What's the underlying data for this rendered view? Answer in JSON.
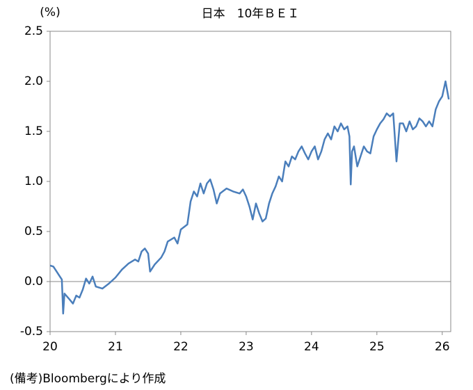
{
  "chart_data": {
    "type": "line",
    "title": "日本　10年ＢＥＩ",
    "y_label": "(%)",
    "note": "(備考)Bloombergにより作成",
    "xlim": [
      20,
      26.13
    ],
    "xticks": [
      20,
      21,
      22,
      23,
      24,
      25,
      26
    ],
    "ylim": [
      -0.5,
      2.5
    ],
    "yticks": [
      {
        "value": -0.5,
        "label": "-0.5"
      },
      {
        "value": 0,
        "label": "0.0"
      },
      {
        "value": 0.5,
        "label": "0.5"
      },
      {
        "value": 1,
        "label": "1.0"
      },
      {
        "value": 1.5,
        "label": "1.5"
      },
      {
        "value": 2,
        "label": "2.0"
      },
      {
        "value": 2.5,
        "label": "2.5"
      }
    ],
    "reference_line": 0,
    "grid": false,
    "x": [
      20.0,
      20.05,
      20.1,
      20.15,
      20.18,
      20.2,
      20.22,
      20.3,
      20.35,
      20.4,
      20.45,
      20.5,
      20.55,
      20.6,
      20.65,
      20.7,
      20.8,
      20.9,
      21.0,
      21.1,
      21.2,
      21.3,
      21.35,
      21.4,
      21.45,
      21.5,
      21.53,
      21.6,
      21.7,
      21.75,
      21.8,
      21.9,
      21.95,
      22.0,
      22.1,
      22.15,
      22.2,
      22.25,
      22.3,
      22.35,
      22.4,
      22.45,
      22.5,
      22.55,
      22.6,
      22.7,
      22.8,
      22.9,
      22.95,
      23.0,
      23.05,
      23.1,
      23.15,
      23.2,
      23.25,
      23.3,
      23.35,
      23.4,
      23.45,
      23.5,
      23.55,
      23.6,
      23.65,
      23.7,
      23.75,
      23.8,
      23.85,
      23.9,
      23.95,
      24.0,
      24.05,
      24.1,
      24.15,
      24.2,
      24.25,
      24.3,
      24.35,
      24.4,
      24.45,
      24.5,
      24.55,
      24.58,
      24.6,
      24.62,
      24.65,
      24.7,
      24.75,
      24.8,
      24.85,
      24.9,
      24.95,
      25.0,
      25.05,
      25.1,
      25.15,
      25.2,
      25.25,
      25.3,
      25.35,
      25.4,
      25.45,
      25.5,
      25.55,
      25.6,
      25.65,
      25.7,
      25.75,
      25.8,
      25.85,
      25.9,
      25.95,
      26.0,
      26.05,
      26.1
    ],
    "series": [
      {
        "name": "10年BEI",
        "color": "#4a7ebb",
        "values": [
          0.16,
          0.15,
          0.1,
          0.05,
          0.02,
          -0.32,
          -0.12,
          -0.18,
          -0.22,
          -0.14,
          -0.16,
          -0.08,
          0.03,
          -0.02,
          0.05,
          -0.05,
          -0.07,
          -0.02,
          0.04,
          0.12,
          0.18,
          0.22,
          0.2,
          0.3,
          0.33,
          0.28,
          0.1,
          0.17,
          0.24,
          0.3,
          0.4,
          0.44,
          0.38,
          0.52,
          0.57,
          0.8,
          0.9,
          0.85,
          0.98,
          0.88,
          0.98,
          1.02,
          0.92,
          0.78,
          0.88,
          0.93,
          0.9,
          0.88,
          0.92,
          0.85,
          0.75,
          0.62,
          0.78,
          0.68,
          0.6,
          0.63,
          0.78,
          0.88,
          0.95,
          1.05,
          1.0,
          1.2,
          1.15,
          1.25,
          1.22,
          1.3,
          1.35,
          1.28,
          1.22,
          1.3,
          1.35,
          1.22,
          1.3,
          1.42,
          1.48,
          1.42,
          1.55,
          1.5,
          1.58,
          1.52,
          1.55,
          1.45,
          0.97,
          1.3,
          1.35,
          1.15,
          1.25,
          1.35,
          1.3,
          1.28,
          1.45,
          1.52,
          1.58,
          1.62,
          1.68,
          1.65,
          1.68,
          1.2,
          1.58,
          1.58,
          1.5,
          1.6,
          1.52,
          1.55,
          1.63,
          1.6,
          1.55,
          1.6,
          1.55,
          1.72,
          1.8,
          1.85,
          2.0,
          1.82
        ]
      }
    ]
  }
}
